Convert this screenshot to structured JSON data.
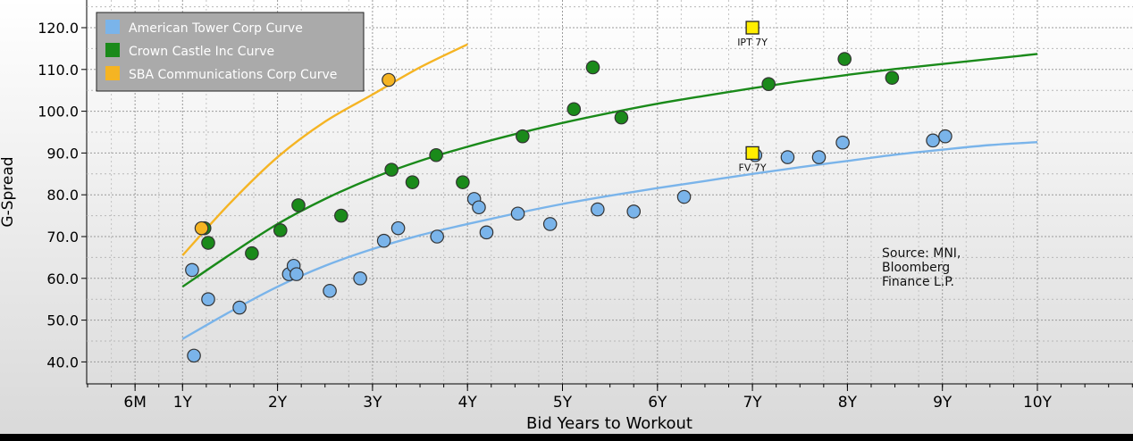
{
  "chart_data": {
    "type": "scatter",
    "xlabel": "Bid Years to Workout",
    "ylabel": "G-Spread",
    "xlim": [
      0.0,
      10.0
    ],
    "ylim": [
      35.0,
      125.0
    ],
    "x_ticks": [
      {
        "value": 0.5,
        "label": "6M"
      },
      {
        "value": 1,
        "label": "1Y"
      },
      {
        "value": 2,
        "label": "2Y"
      },
      {
        "value": 3,
        "label": "3Y"
      },
      {
        "value": 4,
        "label": "4Y"
      },
      {
        "value": 5,
        "label": "5Y"
      },
      {
        "value": 6,
        "label": "6Y"
      },
      {
        "value": 7,
        "label": "7Y"
      },
      {
        "value": 8,
        "label": "8Y"
      },
      {
        "value": 9,
        "label": "9Y"
      },
      {
        "value": 10,
        "label": "10Y"
      }
    ],
    "y_ticks": [
      {
        "value": 40,
        "label": "40.0"
      },
      {
        "value": 50,
        "label": "50.0"
      },
      {
        "value": 60,
        "label": "60.0"
      },
      {
        "value": 70,
        "label": "70.0"
      },
      {
        "value": 80,
        "label": "80.0"
      },
      {
        "value": 90,
        "label": "90.0"
      },
      {
        "value": 100,
        "label": "100.0"
      },
      {
        "value": 110,
        "label": "110.0"
      },
      {
        "value": 120,
        "label": "120.0"
      }
    ],
    "grid": true,
    "legend_position": "top-left",
    "series": [
      {
        "name": "American Tower Corp Curve",
        "color": "#7ab4ea",
        "points": [
          [
            1.1,
            62
          ],
          [
            1.12,
            41.5
          ],
          [
            1.27,
            55
          ],
          [
            1.6,
            53
          ],
          [
            2.12,
            61
          ],
          [
            2.17,
            63
          ],
          [
            2.2,
            61
          ],
          [
            2.55,
            57
          ],
          [
            2.87,
            60
          ],
          [
            3.12,
            69
          ],
          [
            3.27,
            72
          ],
          [
            3.68,
            70
          ],
          [
            4.07,
            79
          ],
          [
            4.12,
            77
          ],
          [
            4.2,
            71
          ],
          [
            4.53,
            75.5
          ],
          [
            4.87,
            73
          ],
          [
            5.37,
            76.5
          ],
          [
            5.75,
            76
          ],
          [
            6.28,
            79.5
          ],
          [
            7.03,
            89.5
          ],
          [
            7.37,
            89
          ],
          [
            7.7,
            89
          ],
          [
            7.95,
            92.5
          ],
          [
            8.9,
            93
          ],
          [
            9.03,
            94
          ]
        ],
        "curve": [
          [
            1,
            45.5
          ],
          [
            1.5,
            52
          ],
          [
            2,
            58
          ],
          [
            2.5,
            63
          ],
          [
            3,
            67
          ],
          [
            3.5,
            70.3
          ],
          [
            4,
            73
          ],
          [
            4.5,
            75.5
          ],
          [
            5,
            77.8
          ],
          [
            5.5,
            79.8
          ],
          [
            6,
            81.6
          ],
          [
            6.5,
            83.3
          ],
          [
            7,
            85
          ],
          [
            7.5,
            86.6
          ],
          [
            8,
            88.1
          ],
          [
            8.5,
            89.6
          ],
          [
            9,
            90.8
          ],
          [
            9.5,
            91.9
          ],
          [
            10,
            92.6
          ]
        ]
      },
      {
        "name": "Crown Castle Inc Curve",
        "color": "#1a8a1a",
        "points": [
          [
            1.23,
            72
          ],
          [
            1.27,
            68.5
          ],
          [
            1.73,
            66
          ],
          [
            2.03,
            71.5
          ],
          [
            2.22,
            77.5
          ],
          [
            2.67,
            75
          ],
          [
            3.2,
            86
          ],
          [
            3.42,
            83
          ],
          [
            3.67,
            89.5
          ],
          [
            3.95,
            83
          ],
          [
            4.58,
            94
          ],
          [
            5.12,
            100.5
          ],
          [
            5.32,
            110.5
          ],
          [
            5.62,
            98.5
          ],
          [
            7.17,
            106.5
          ],
          [
            7.97,
            112.5
          ],
          [
            8.47,
            108
          ]
        ],
        "curve": [
          [
            1,
            58
          ],
          [
            1.5,
            65.7
          ],
          [
            2,
            73
          ],
          [
            2.5,
            79
          ],
          [
            3,
            84
          ],
          [
            3.5,
            88.1
          ],
          [
            4,
            91.5
          ],
          [
            4.5,
            94.5
          ],
          [
            5,
            97.2
          ],
          [
            5.5,
            99.6
          ],
          [
            6,
            101.8
          ],
          [
            6.5,
            103.7
          ],
          [
            7,
            105.5
          ],
          [
            7.5,
            107.2
          ],
          [
            8,
            108.7
          ],
          [
            8.5,
            110.1
          ],
          [
            9,
            111.3
          ],
          [
            9.5,
            112.5
          ],
          [
            10,
            113.7
          ]
        ]
      },
      {
        "name": "SBA Communications Corp Curve",
        "color": "#f5b423",
        "points": [
          [
            1.2,
            72
          ],
          [
            3.17,
            107.5
          ]
        ],
        "curve": [
          [
            1,
            65.5
          ],
          [
            1.5,
            78
          ],
          [
            2,
            89
          ],
          [
            2.5,
            97.5
          ],
          [
            3,
            104
          ],
          [
            3.5,
            110.5
          ],
          [
            4,
            116
          ]
        ]
      }
    ],
    "markers": [
      {
        "label": "IPT 7Y",
        "x": 7.0,
        "y": 120,
        "color": "#ffee00"
      },
      {
        "label": "FV 7Y",
        "x": 7.0,
        "y": 90,
        "color": "#ffee00"
      }
    ],
    "annotation": {
      "lines": [
        "Source: MNI,",
        "Bloomberg",
        "Finance L.P."
      ]
    }
  },
  "colors": {
    "plot_background_top": "#ffffff",
    "plot_background_bottom": "#d9d9d9",
    "legend_background": "#aaaaaa",
    "frame": "#000000"
  }
}
